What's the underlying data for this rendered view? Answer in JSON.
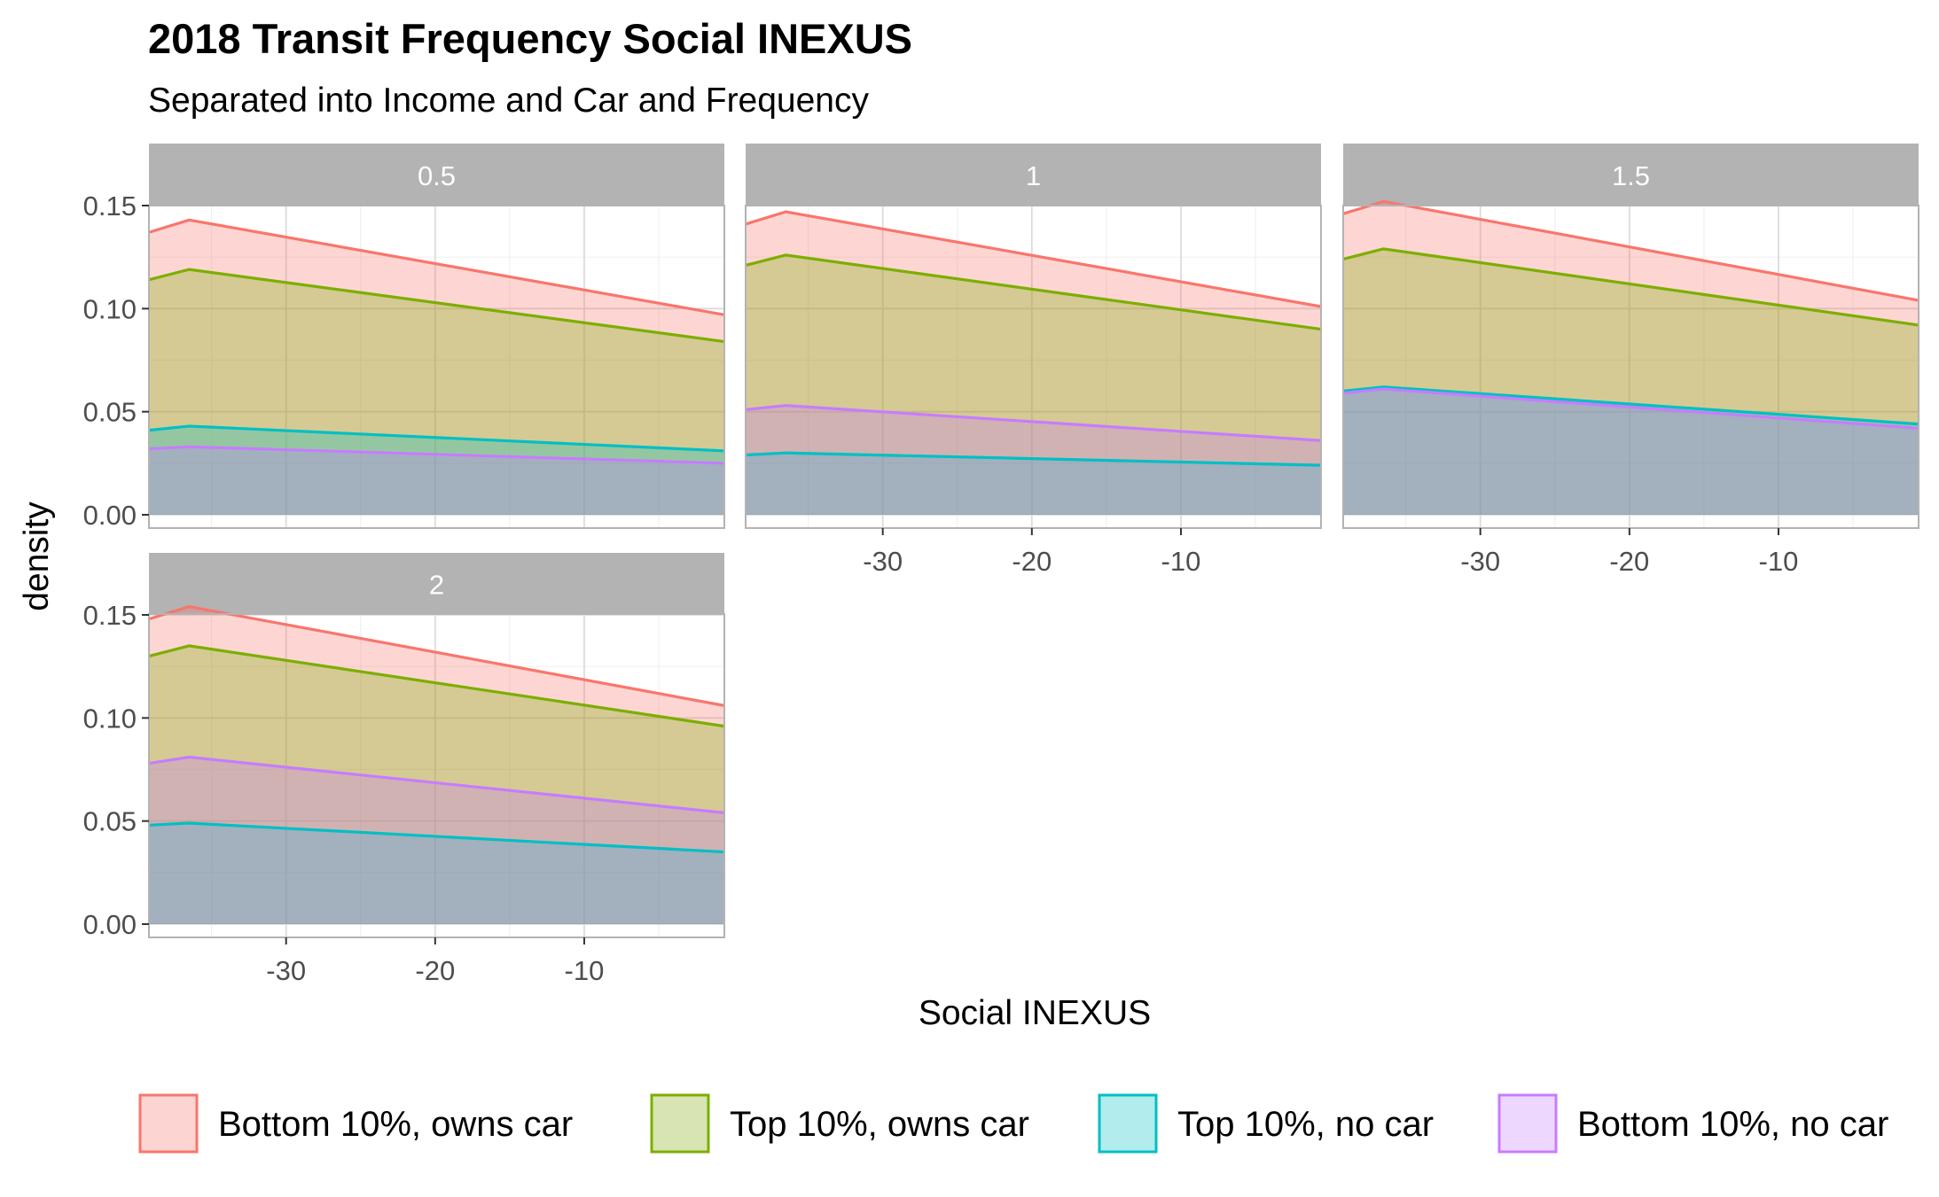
{
  "chart_data": {
    "type": "area",
    "title": "2018 Transit Frequency Social INEXUS",
    "subtitle": "Separated into Income and Car and Frequency",
    "xlabel": "Social INEXUS",
    "ylabel": "density",
    "xlim": [
      -39.2,
      -0.6
    ],
    "ylim": [
      0,
      0.15
    ],
    "x_ticks": [
      -30,
      -20,
      -10
    ],
    "y_ticks": [
      "0.00",
      "0.05",
      "0.10",
      "0.15"
    ],
    "grid": true,
    "legend_position": "bottom",
    "series": [
      {
        "name": "Bottom 10%, owns car",
        "color": "#F8766D",
        "fill": "#FCD5D3"
      },
      {
        "name": "Top 10%, owns car",
        "color": "#7CAE00",
        "fill": "#D8E5B2"
      },
      {
        "name": "Top 10%, no car",
        "color": "#00BFC4",
        "fill": "#B2ECED"
      },
      {
        "name": "Bottom 10%, no car",
        "color": "#C77CFF",
        "fill": "#EED7FF"
      }
    ],
    "facets": [
      {
        "label": "0.5",
        "series": [
          {
            "name": "Bottom 10%, owns car",
            "x": [
              -39.2,
              -36.5,
              -0.6
            ],
            "y": [
              0.137,
              0.143,
              0.097
            ]
          },
          {
            "name": "Top 10%, owns car",
            "x": [
              -39.2,
              -36.5,
              -0.6
            ],
            "y": [
              0.114,
              0.119,
              0.084
            ]
          },
          {
            "name": "Top 10%, no car",
            "x": [
              -39.2,
              -36.5,
              -0.6
            ],
            "y": [
              0.041,
              0.043,
              0.031
            ]
          },
          {
            "name": "Bottom 10%, no car",
            "x": [
              -39.2,
              -36.5,
              -0.6
            ],
            "y": [
              0.032,
              0.033,
              0.025
            ]
          }
        ]
      },
      {
        "label": "1",
        "series": [
          {
            "name": "Bottom 10%, owns car",
            "x": [
              -39.2,
              -36.5,
              -0.6
            ],
            "y": [
              0.141,
              0.147,
              0.101
            ]
          },
          {
            "name": "Top 10%, owns car",
            "x": [
              -39.2,
              -36.5,
              -0.6
            ],
            "y": [
              0.121,
              0.126,
              0.09
            ]
          },
          {
            "name": "Top 10%, no car",
            "x": [
              -39.2,
              -36.5,
              -0.6
            ],
            "y": [
              0.029,
              0.03,
              0.024
            ]
          },
          {
            "name": "Bottom 10%, no car",
            "x": [
              -39.2,
              -36.5,
              -0.6
            ],
            "y": [
              0.051,
              0.053,
              0.036
            ]
          }
        ]
      },
      {
        "label": "1.5",
        "series": [
          {
            "name": "Bottom 10%, owns car",
            "x": [
              -39.2,
              -36.5,
              -0.6
            ],
            "y": [
              0.146,
              0.152,
              0.104
            ]
          },
          {
            "name": "Top 10%, owns car",
            "x": [
              -39.2,
              -36.5,
              -0.6
            ],
            "y": [
              0.124,
              0.129,
              0.092
            ]
          },
          {
            "name": "Top 10%, no car",
            "x": [
              -39.2,
              -36.5,
              -0.6
            ],
            "y": [
              0.06,
              0.062,
              0.044
            ]
          },
          {
            "name": "Bottom 10%, no car",
            "x": [
              -39.2,
              -36.5,
              -0.6
            ],
            "y": [
              0.059,
              0.061,
              0.042
            ]
          }
        ]
      },
      {
        "label": "2",
        "series": [
          {
            "name": "Bottom 10%, owns car",
            "x": [
              -39.2,
              -36.5,
              -0.6
            ],
            "y": [
              0.148,
              0.154,
              0.106
            ]
          },
          {
            "name": "Top 10%, owns car",
            "x": [
              -39.2,
              -36.5,
              -0.6
            ],
            "y": [
              0.13,
              0.135,
              0.096
            ]
          },
          {
            "name": "Top 10%, no car",
            "x": [
              -39.2,
              -36.5,
              -0.6
            ],
            "y": [
              0.048,
              0.049,
              0.035
            ]
          },
          {
            "name": "Bottom 10%, no car",
            "x": [
              -39.2,
              -36.5,
              -0.6
            ],
            "y": [
              0.078,
              0.081,
              0.054
            ]
          }
        ]
      }
    ]
  }
}
